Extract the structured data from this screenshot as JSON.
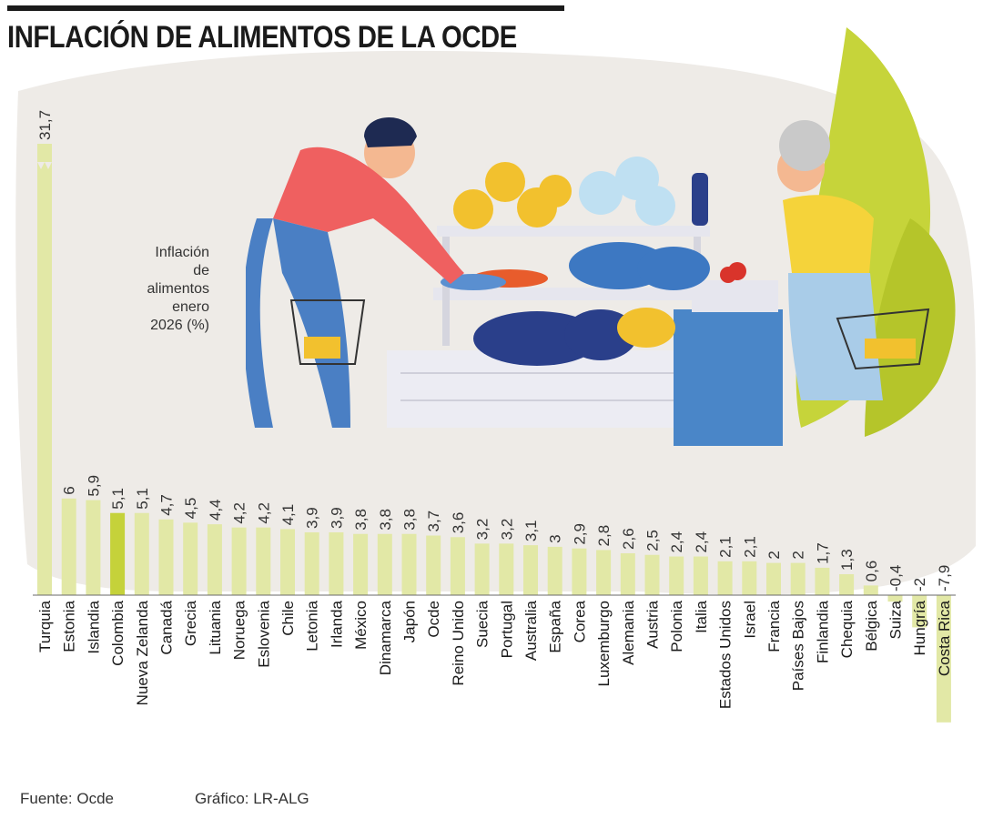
{
  "header": {
    "title": "INFLACIÓN DE ALIMENTOS DE LA OCDE"
  },
  "footer": {
    "source": "Fuente: Ocde",
    "credit": "Gráfico: LR-ALG"
  },
  "colors": {
    "bar": "#e2e8a6",
    "highlight": "#c5d23a",
    "background_blob": "#eeebe7",
    "text": "#333333"
  },
  "chart_data": {
    "type": "bar",
    "value_label": "Inflación de alimentos enero 2026 (%)",
    "highlight_category": "Colombia",
    "y_axis_break_on": "Turquia",
    "categories": [
      "Turquia",
      "Estonia",
      "Islandia",
      "Colombia",
      "Nueva Zelanda",
      "Canadá",
      "Grecia",
      "Lituania",
      "Noruega",
      "Eslovenia",
      "Chile",
      "Letonia",
      "Irlanda",
      "México",
      "Dinamarca",
      "Japón",
      "Ocde",
      "Reino Unido",
      "Suecia",
      "Portugal",
      "Australia",
      "España",
      "Corea",
      "Luxemburgo",
      "Alemania",
      "Austria",
      "Polonia",
      "Italia",
      "Estados Unidos",
      "Israel",
      "Francia",
      "Países Bajos",
      "Finlandia",
      "Chequia",
      "Bélgica",
      "Suiza",
      "Hungría",
      "Costa Rica"
    ],
    "values": [
      31.7,
      6,
      5.9,
      5.1,
      5.1,
      4.7,
      4.5,
      4.4,
      4.2,
      4.2,
      4.1,
      3.9,
      3.9,
      3.8,
      3.8,
      3.8,
      3.7,
      3.6,
      3.2,
      3.2,
      3.1,
      3,
      2.9,
      2.8,
      2.6,
      2.5,
      2.4,
      2.4,
      2.1,
      2.1,
      2,
      2,
      1.7,
      1.3,
      0.6,
      -0.4,
      -2,
      -7.9
    ],
    "data_labels": [
      "31,7",
      "6",
      "5,9",
      "5,1",
      "5,1",
      "4,7",
      "4,5",
      "4,4",
      "4,2",
      "4,2",
      "4,1",
      "3,9",
      "3,9",
      "3,8",
      "3,8",
      "3,8",
      "3,7",
      "3,6",
      "3,2",
      "3,2",
      "3,1",
      "3",
      "2,9",
      "2,8",
      "2,6",
      "2,5",
      "2,4",
      "2,4",
      "2,1",
      "2,1",
      "2",
      "2",
      "1,7",
      "1,3",
      "0,6",
      "-0,4",
      "-2",
      "-7,9"
    ]
  }
}
